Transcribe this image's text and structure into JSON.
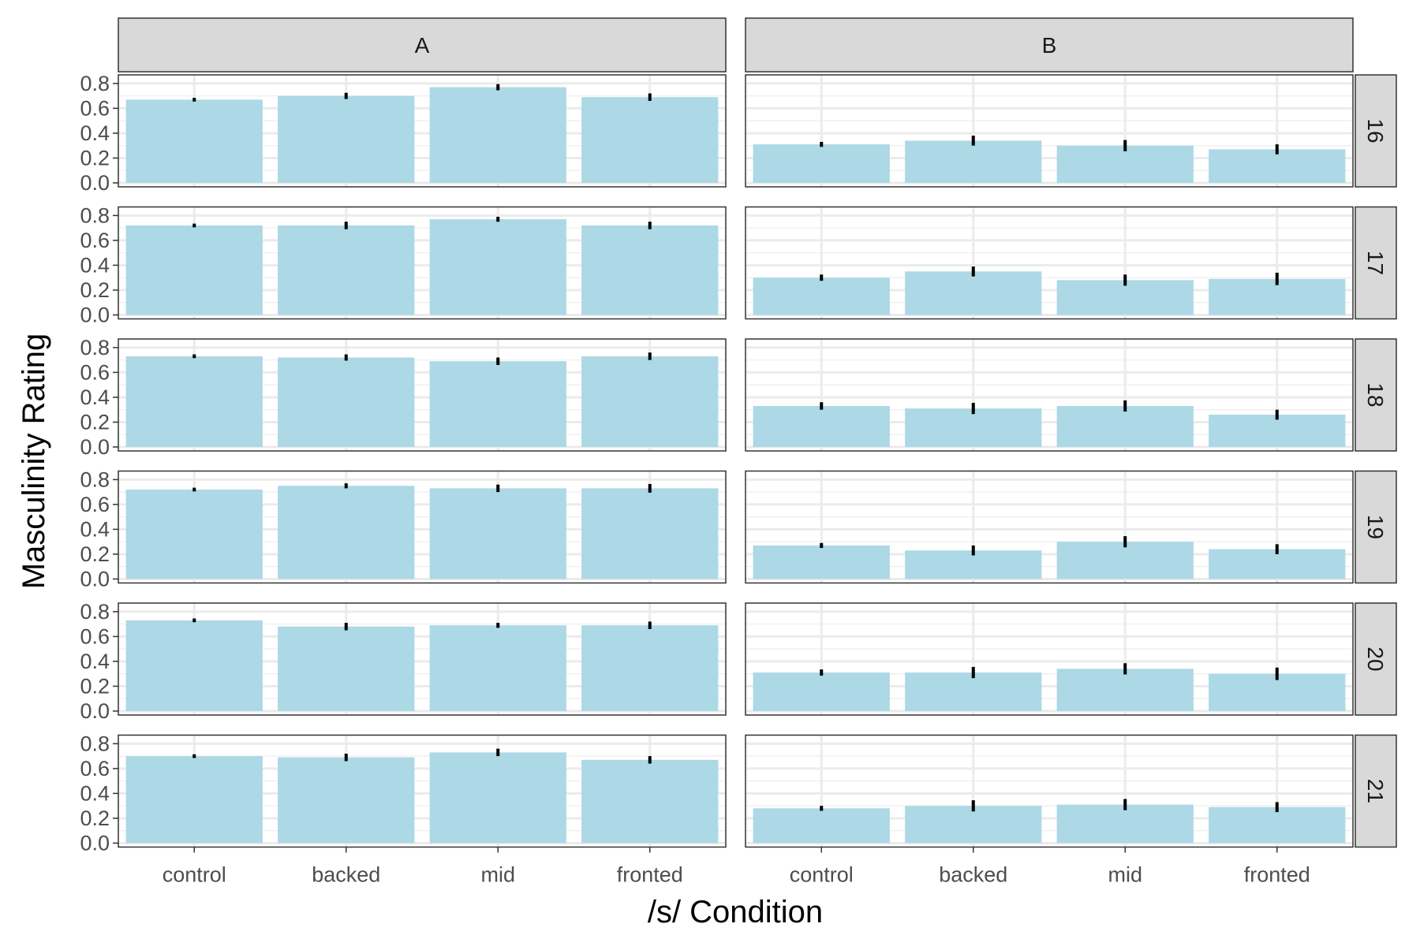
{
  "chart_data": {
    "type": "bar",
    "xlabel": "/s/ Condition",
    "ylabel": "Masculinity Rating",
    "categories": [
      "control",
      "backed",
      "mid",
      "fronted"
    ],
    "columns": [
      "A",
      "B"
    ],
    "rows": [
      "16",
      "17",
      "18",
      "19",
      "20",
      "21"
    ],
    "ylim": [
      0,
      0.85
    ],
    "yticks": [
      "0.0",
      "0.2",
      "0.4",
      "0.6",
      "0.8"
    ],
    "grid": true,
    "bar_color": "#add8e6",
    "errorbar_color": "#000000",
    "panels": [
      {
        "column": "A",
        "row": "16",
        "values": [
          0.67,
          0.7,
          0.77,
          0.69
        ],
        "errors": [
          0.015,
          0.025,
          0.025,
          0.03
        ]
      },
      {
        "column": "B",
        "row": "16",
        "values": [
          0.31,
          0.34,
          0.3,
          0.27
        ],
        "errors": [
          0.02,
          0.04,
          0.045,
          0.04
        ]
      },
      {
        "column": "A",
        "row": "17",
        "values": [
          0.72,
          0.72,
          0.77,
          0.72
        ],
        "errors": [
          0.015,
          0.03,
          0.02,
          0.03
        ]
      },
      {
        "column": "B",
        "row": "17",
        "values": [
          0.3,
          0.35,
          0.28,
          0.29
        ],
        "errors": [
          0.025,
          0.04,
          0.045,
          0.05
        ]
      },
      {
        "column": "A",
        "row": "18",
        "values": [
          0.73,
          0.72,
          0.69,
          0.73
        ],
        "errors": [
          0.015,
          0.025,
          0.03,
          0.03
        ]
      },
      {
        "column": "B",
        "row": "18",
        "values": [
          0.33,
          0.31,
          0.33,
          0.26
        ],
        "errors": [
          0.03,
          0.045,
          0.045,
          0.04
        ]
      },
      {
        "column": "A",
        "row": "19",
        "values": [
          0.72,
          0.75,
          0.73,
          0.73
        ],
        "errors": [
          0.015,
          0.02,
          0.03,
          0.035
        ]
      },
      {
        "column": "B",
        "row": "19",
        "values": [
          0.27,
          0.23,
          0.3,
          0.24
        ],
        "errors": [
          0.02,
          0.04,
          0.045,
          0.04
        ]
      },
      {
        "column": "A",
        "row": "20",
        "values": [
          0.73,
          0.68,
          0.69,
          0.69
        ],
        "errors": [
          0.015,
          0.03,
          0.02,
          0.03
        ]
      },
      {
        "column": "B",
        "row": "20",
        "values": [
          0.31,
          0.31,
          0.34,
          0.3
        ],
        "errors": [
          0.025,
          0.045,
          0.045,
          0.05
        ]
      },
      {
        "column": "A",
        "row": "21",
        "values": [
          0.7,
          0.69,
          0.73,
          0.67
        ],
        "errors": [
          0.015,
          0.03,
          0.03,
          0.03
        ]
      },
      {
        "column": "B",
        "row": "21",
        "values": [
          0.28,
          0.3,
          0.31,
          0.29
        ],
        "errors": [
          0.02,
          0.045,
          0.045,
          0.04
        ]
      }
    ]
  }
}
